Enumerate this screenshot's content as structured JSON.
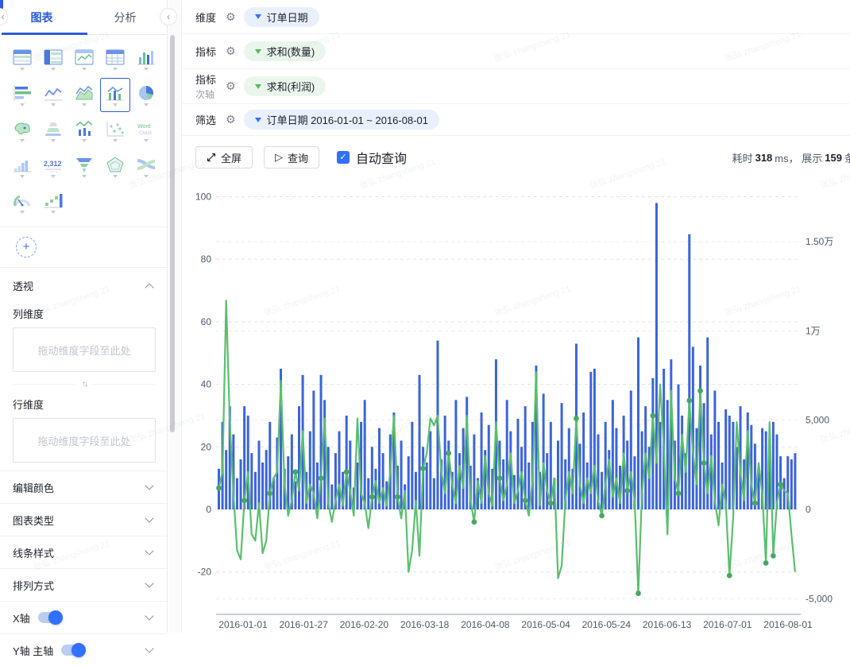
{
  "watermark": "张弘 zhangsheng 21",
  "colors": {
    "accent": "#2d5cdb",
    "bar": "#3b64d8",
    "line": "#5bbe6f",
    "dot": "#47a85f",
    "pill_blue_bg": "#e9effc",
    "pill_green_bg": "#eaf6ec",
    "grid": "#e2e4e8",
    "grid_right": "#ececef",
    "axis_line": "#c9cdd2",
    "axis_text": "#4e5969"
  },
  "sidebar": {
    "tabs": [
      {
        "label": "图表"
      },
      {
        "label": "分析"
      }
    ],
    "collapse_icon": "‹",
    "chart_icons": [
      "crosstab",
      "table-emphasis",
      "trend-table",
      "plain-table",
      "column-chart",
      "bar-chart",
      "line-chart",
      "area-chart",
      "combo-chart",
      "pie-chart",
      "map-chart",
      "pyramid-chart",
      "line-column",
      "scatter-chart",
      "word-cloud",
      "histogram",
      "kpi-card",
      "funnel-chart",
      "radar-chart",
      "sankey-chart",
      "gauge-chart",
      "decomposition-tree"
    ],
    "selected_icon": "combo-chart",
    "kpi_icon_text": "2,312",
    "word_cloud_icon_text": [
      "Word",
      "Cloud"
    ],
    "add_button": "+",
    "pivot": {
      "title": "透视",
      "col_label": "列维度",
      "row_label": "行维度",
      "dropzone_placeholder": "拖动维度字段至此处"
    },
    "sections": [
      "编辑颜色",
      "图表类型",
      "线条样式",
      "排列方式"
    ],
    "xaxis_row": {
      "label": "X轴",
      "toggle_on": true
    },
    "yaxis_row": {
      "label": "Y轴 主轴",
      "toggle_on": true
    }
  },
  "config": {
    "rows": [
      {
        "label": "维度",
        "sub": "",
        "pill": "订单日期",
        "pill_color": "blue"
      },
      {
        "label": "指标",
        "sub": "",
        "pill": "求和(数量)",
        "pill_color": "green"
      },
      {
        "label": "指标",
        "sub": "次轴",
        "pill": "求和(利润)",
        "pill_color": "green"
      },
      {
        "label": "筛选",
        "sub": "",
        "pill": "订单日期 2016-01-01 ~ 2016-08-01",
        "pill_color": "blue"
      }
    ],
    "gear_icon": "⚙"
  },
  "toolbar": {
    "fullscreen_label": "全屏",
    "query_label": "查询",
    "query_icon": "▷",
    "auto_query_label": "自动查询",
    "auto_query_checked": true,
    "check_glyph": "✓",
    "stats": {
      "time_label": "耗时",
      "time_value": "318",
      "time_unit": "ms，",
      "shown_label": "展示",
      "shown_value": "159",
      "shown_unit": "条"
    }
  },
  "chart_data": {
    "type": "bar",
    "subtype": "dual-axis bar+line combo",
    "title": "",
    "xlabel": "订单日期",
    "x_tick_labels": [
      "2016-01-01",
      "2016-01-27",
      "2016-02-20",
      "2016-03-18",
      "2016-04-08",
      "2016-05-04",
      "2016-05-24",
      "2016-06-13",
      "2016-07-01",
      "2016-08-01"
    ],
    "left_axis": {
      "ticks": [
        100,
        80,
        60,
        40,
        20,
        0,
        -20
      ],
      "ylim": [
        -34,
        106
      ],
      "label": "求和(数量)"
    },
    "right_axis": {
      "ticks": [
        "1.50万",
        "1万",
        "5,000",
        "0",
        "-5,000"
      ],
      "tick_values": [
        15000,
        10000,
        5000,
        0,
        -5000
      ],
      "ylim": [
        -7800,
        18800
      ],
      "label": "求和(利润)"
    },
    "grid": "dashed",
    "legend_position": "none",
    "series": [
      {
        "name": "求和(数量)",
        "type": "bar",
        "axis": "left",
        "color": "#3b64d8",
        "values": [
          13,
          28,
          19,
          33,
          24,
          10,
          16,
          33,
          30,
          18,
          12,
          22,
          15,
          19,
          28,
          10,
          23,
          45,
          13,
          17,
          24,
          9,
          33,
          43,
          12,
          25,
          38,
          15,
          43,
          35,
          20,
          8,
          18,
          25,
          12,
          30,
          22,
          7,
          15,
          28,
          35,
          10,
          20,
          13,
          26,
          18,
          9,
          24,
          31,
          14,
          22,
          8,
          17,
          28,
          12,
          43,
          20,
          15,
          25,
          10,
          54,
          16,
          30,
          22,
          12,
          35,
          18,
          26,
          36,
          14,
          24,
          10,
          31,
          19,
          27,
          13,
          48,
          22,
          16,
          35,
          25,
          11,
          29,
          20,
          33,
          15,
          28,
          46,
          12,
          37,
          18,
          28,
          10,
          22,
          34,
          16,
          26,
          13,
          53,
          21,
          31,
          15,
          44,
          45,
          24,
          12,
          28,
          19,
          35,
          26,
          14,
          30,
          22,
          38,
          17,
          55,
          25,
          33,
          20,
          42,
          98,
          28,
          45,
          35,
          48,
          22,
          40,
          30,
          18,
          88,
          52,
          26,
          46,
          34,
          55,
          24,
          38,
          28,
          15,
          32,
          30,
          28,
          20,
          33,
          16,
          31,
          27,
          21,
          12,
          26,
          25,
          18,
          28,
          24,
          17,
          10,
          17,
          16,
          18
        ]
      },
      {
        "name": "求和(利润)",
        "type": "line",
        "axis": "right",
        "color": "#5bbe6f",
        "values": [
          1200,
          2100,
          11700,
          4900,
          900,
          -2300,
          -2800,
          500,
          2100,
          -1400,
          -1750,
          350,
          -2450,
          -1750,
          900,
          1750,
          2100,
          7200,
          1400,
          -350,
          500,
          2100,
          1050,
          4400,
          350,
          1400,
          900,
          -500,
          1750,
          5100,
          350,
          -700,
          500,
          1400,
          200,
          2100,
          1050,
          -350,
          5100,
          900,
          350,
          -1050,
          700,
          1600,
          350,
          1200,
          200,
          2100,
          5250,
          700,
          -500,
          1050,
          -3500,
          -2300,
          500,
          -2600,
          2300,
          3150,
          5100,
          4700,
          5250,
          2100,
          900,
          3150,
          1400,
          350,
          2450,
          1200,
          5250,
          500,
          -700,
          1600,
          350,
          3000,
          900,
          200,
          4900,
          1750,
          500,
          1400,
          3150,
          350,
          1050,
          2100,
          500,
          -350,
          1600,
          7700,
          200,
          2600,
          1050,
          350,
          1750,
          -3850,
          -3150,
          500,
          2100,
          900,
          5100,
          1400,
          350,
          1750,
          900,
          2450,
          500,
          -350,
          1400,
          2800,
          700,
          1750,
          350,
          3150,
          1050,
          2100,
          500,
          -4700,
          900,
          3150,
          1750,
          5250,
          2600,
          7000,
          3500,
          -1400,
          6650,
          1750,
          900,
          4200,
          2100,
          6100,
          3150,
          1400,
          6650,
          2600,
          900,
          3000,
          500,
          -900,
          1400,
          350,
          -3700,
          -500,
          4900,
          2100,
          500,
          4400,
          1400,
          350,
          2600,
          900,
          -3000,
          4900,
          -2600,
          350,
          1400,
          1050,
          900,
          -1400,
          -3500
        ]
      }
    ],
    "marker_indices": [
      0,
      7,
      14,
      21,
      28,
      35,
      42,
      49,
      56,
      63,
      70,
      77,
      84,
      91,
      98,
      105,
      112,
      115,
      119,
      126,
      129,
      132,
      133,
      140,
      147,
      150,
      152,
      154
    ]
  }
}
